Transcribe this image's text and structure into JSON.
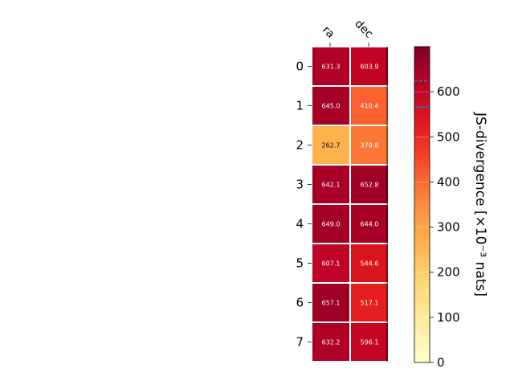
{
  "chart_data": {
    "type": "heatmap",
    "columns": [
      "ra",
      "dec"
    ],
    "rows": [
      "0",
      "1",
      "2",
      "3",
      "4",
      "5",
      "6",
      "7"
    ],
    "values": [
      [
        631.3,
        603.9
      ],
      [
        645.0,
        410.4
      ],
      [
        262.7,
        379.8
      ],
      [
        642.1,
        652.8
      ],
      [
        649.0,
        644.0
      ],
      [
        607.1,
        544.6
      ],
      [
        657.1,
        517.1
      ],
      [
        632.2,
        596.1
      ]
    ],
    "value_labels": [
      [
        "631.3",
        "603.9"
      ],
      [
        "645.0",
        "410.4"
      ],
      [
        "262.7",
        "379.8"
      ],
      [
        "642.1",
        "652.8"
      ],
      [
        "649.0",
        "644.0"
      ],
      [
        "607.1",
        "544.6"
      ],
      [
        "657.1",
        "517.1"
      ],
      [
        "632.2",
        "596.1"
      ]
    ],
    "colorbar": {
      "label": "JS-divergence [×10⁻³ nats]",
      "range": [
        0,
        700
      ],
      "ticks": [
        0,
        100,
        200,
        300,
        400,
        500,
        600
      ],
      "tick_labels": [
        "0",
        "100",
        "200",
        "300",
        "400",
        "500",
        "600"
      ],
      "colormap": "YlOrRd",
      "markers": [
        {
          "value": 566,
          "style": "solid",
          "color": "#5a5a8a"
        },
        {
          "value": 624,
          "style": "dashed",
          "color": "#5a5a8a"
        }
      ]
    },
    "grid": false
  }
}
